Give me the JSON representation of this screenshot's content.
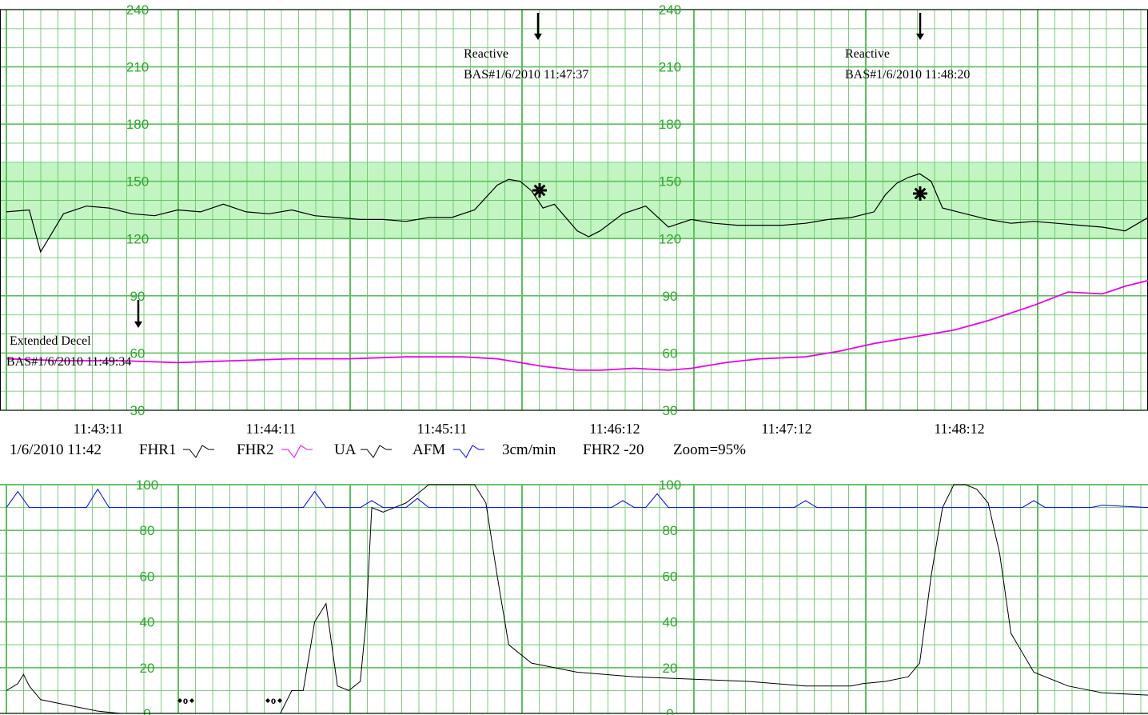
{
  "chart_data": [
    {
      "type": "line",
      "panel": "fetal heart rate",
      "ylim": [
        30,
        240
      ],
      "y_ticks": [
        240,
        210,
        180,
        150,
        120,
        90,
        60,
        30
      ],
      "normal_band": [
        120,
        160
      ],
      "time_labels": [
        "11:43:11",
        "11:44:11",
        "11:45:11",
        "11:46:12",
        "11:47:12",
        "11:48:12"
      ],
      "series": [
        {
          "name": "FHR1",
          "color": "#000000",
          "x": [
            0,
            0.02,
            0.03,
            0.05,
            0.07,
            0.09,
            0.11,
            0.13,
            0.15,
            0.17,
            0.19,
            0.21,
            0.23,
            0.25,
            0.27,
            0.29,
            0.31,
            0.33,
            0.35,
            0.37,
            0.39,
            0.41,
            0.43,
            0.44,
            0.45,
            0.46,
            0.47,
            0.48,
            0.5,
            0.51,
            0.52,
            0.54,
            0.56,
            0.58,
            0.6,
            0.62,
            0.64,
            0.66,
            0.68,
            0.7,
            0.72,
            0.74,
            0.76,
            0.77,
            0.78,
            0.79,
            0.8,
            0.81,
            0.82,
            0.84,
            0.86,
            0.88,
            0.9,
            0.92,
            0.94,
            0.96,
            0.98,
            1.0
          ],
          "values": [
            134,
            135,
            113,
            133,
            137,
            136,
            133,
            132,
            135,
            134,
            138,
            134,
            133,
            135,
            132,
            131,
            130,
            130,
            129,
            131,
            131,
            135,
            148,
            151,
            150,
            145,
            136,
            138,
            124,
            121,
            124,
            133,
            137,
            126,
            130,
            128,
            127,
            127,
            127,
            128,
            130,
            131,
            134,
            143,
            149,
            152,
            154,
            150,
            136,
            133,
            130,
            128,
            129,
            128,
            127,
            126,
            124,
            131
          ]
        },
        {
          "name": "FHR2",
          "color": "#ee00ee",
          "x": [
            0,
            0.05,
            0.1,
            0.15,
            0.2,
            0.25,
            0.3,
            0.35,
            0.4,
            0.43,
            0.47,
            0.5,
            0.52,
            0.55,
            0.58,
            0.6,
            0.63,
            0.66,
            0.7,
            0.73,
            0.76,
            0.8,
            0.83,
            0.86,
            0.9,
            0.93,
            0.96,
            0.98,
            1.0
          ],
          "values": [
            57,
            56,
            56,
            55,
            56,
            57,
            57,
            58,
            58,
            57,
            53,
            51,
            51,
            52,
            51,
            52,
            55,
            57,
            58,
            61,
            65,
            69,
            72,
            77,
            85,
            92,
            91,
            95,
            98
          ]
        }
      ]
    },
    {
      "type": "line",
      "panel": "uterine activity",
      "ylim": [
        0,
        100
      ],
      "y_ticks": [
        100,
        80,
        60,
        40,
        20,
        0
      ],
      "series": [
        {
          "name": "UA",
          "color": "#000000",
          "x": [
            0,
            0.01,
            0.015,
            0.02,
            0.03,
            0.05,
            0.08,
            0.1,
            0.15,
            0.2,
            0.24,
            0.25,
            0.26,
            0.27,
            0.28,
            0.29,
            0.3,
            0.31,
            0.315,
            0.32,
            0.33,
            0.35,
            0.37,
            0.38,
            0.39,
            0.4,
            0.41,
            0.42,
            0.43,
            0.44,
            0.46,
            0.5,
            0.55,
            0.6,
            0.65,
            0.7,
            0.72,
            0.73,
            0.74,
            0.75,
            0.77,
            0.79,
            0.8,
            0.81,
            0.82,
            0.83,
            0.84,
            0.85,
            0.86,
            0.87,
            0.88,
            0.9,
            0.93,
            0.96,
            1.0
          ],
          "values": [
            10,
            13,
            17,
            12,
            6,
            4,
            1,
            0,
            0,
            0,
            0,
            10,
            10,
            40,
            48,
            12,
            10,
            14,
            40,
            90,
            88,
            92,
            100,
            100,
            100,
            100,
            100,
            92,
            60,
            30,
            22,
            18,
            16,
            15,
            14,
            12,
            12,
            12,
            12,
            13,
            14,
            16,
            22,
            60,
            90,
            100,
            100,
            98,
            92,
            70,
            35,
            18,
            12,
            9,
            8
          ]
        },
        {
          "name": "AFM",
          "color": "#0000ff",
          "x": [
            0,
            0.01,
            0.02,
            0.03,
            0.07,
            0.08,
            0.09,
            0.26,
            0.27,
            0.28,
            0.31,
            0.32,
            0.33,
            0.35,
            0.36,
            0.37,
            0.53,
            0.54,
            0.55,
            0.56,
            0.57,
            0.58,
            0.69,
            0.7,
            0.71,
            0.72,
            0.73,
            0.89,
            0.9,
            0.91,
            0.95,
            0.96,
            1.0
          ],
          "values": [
            90,
            97,
            90,
            90,
            90,
            98,
            90,
            90,
            97,
            90,
            90,
            93,
            90,
            90,
            94,
            90,
            90,
            93,
            90,
            90,
            96,
            90,
            90,
            93,
            90,
            90,
            90,
            90,
            93,
            90,
            90,
            91,
            90
          ]
        }
      ]
    }
  ],
  "annotations": [
    {
      "line1": "Reactive",
      "line2": "BAS#1/6/2010 11:47:37"
    },
    {
      "line1": "Reactive",
      "line2": "BAS#1/6/2010 11:48:20"
    },
    {
      "line1": "Extended Decel",
      "line2": "BAS#1/6/2010 11:49:34"
    }
  ],
  "info_bar": {
    "datetime": "1/6/2010 11:42",
    "fhr1_label": "FHR1",
    "fhr2_label": "FHR2",
    "ua_label": "UA",
    "afm_label": "AFM",
    "speed": "3cm/min",
    "fhr2_offset": "FHR2 -20",
    "zoom": "Zoom=95%"
  },
  "markers": [
    "0",
    "0"
  ],
  "colors": {
    "grid": "#5fbf5f",
    "band": "#c2f5c2",
    "fhr1": "#000000",
    "fhr2": "#ee00ee",
    "ua": "#000000",
    "afm": "#0000ff"
  }
}
